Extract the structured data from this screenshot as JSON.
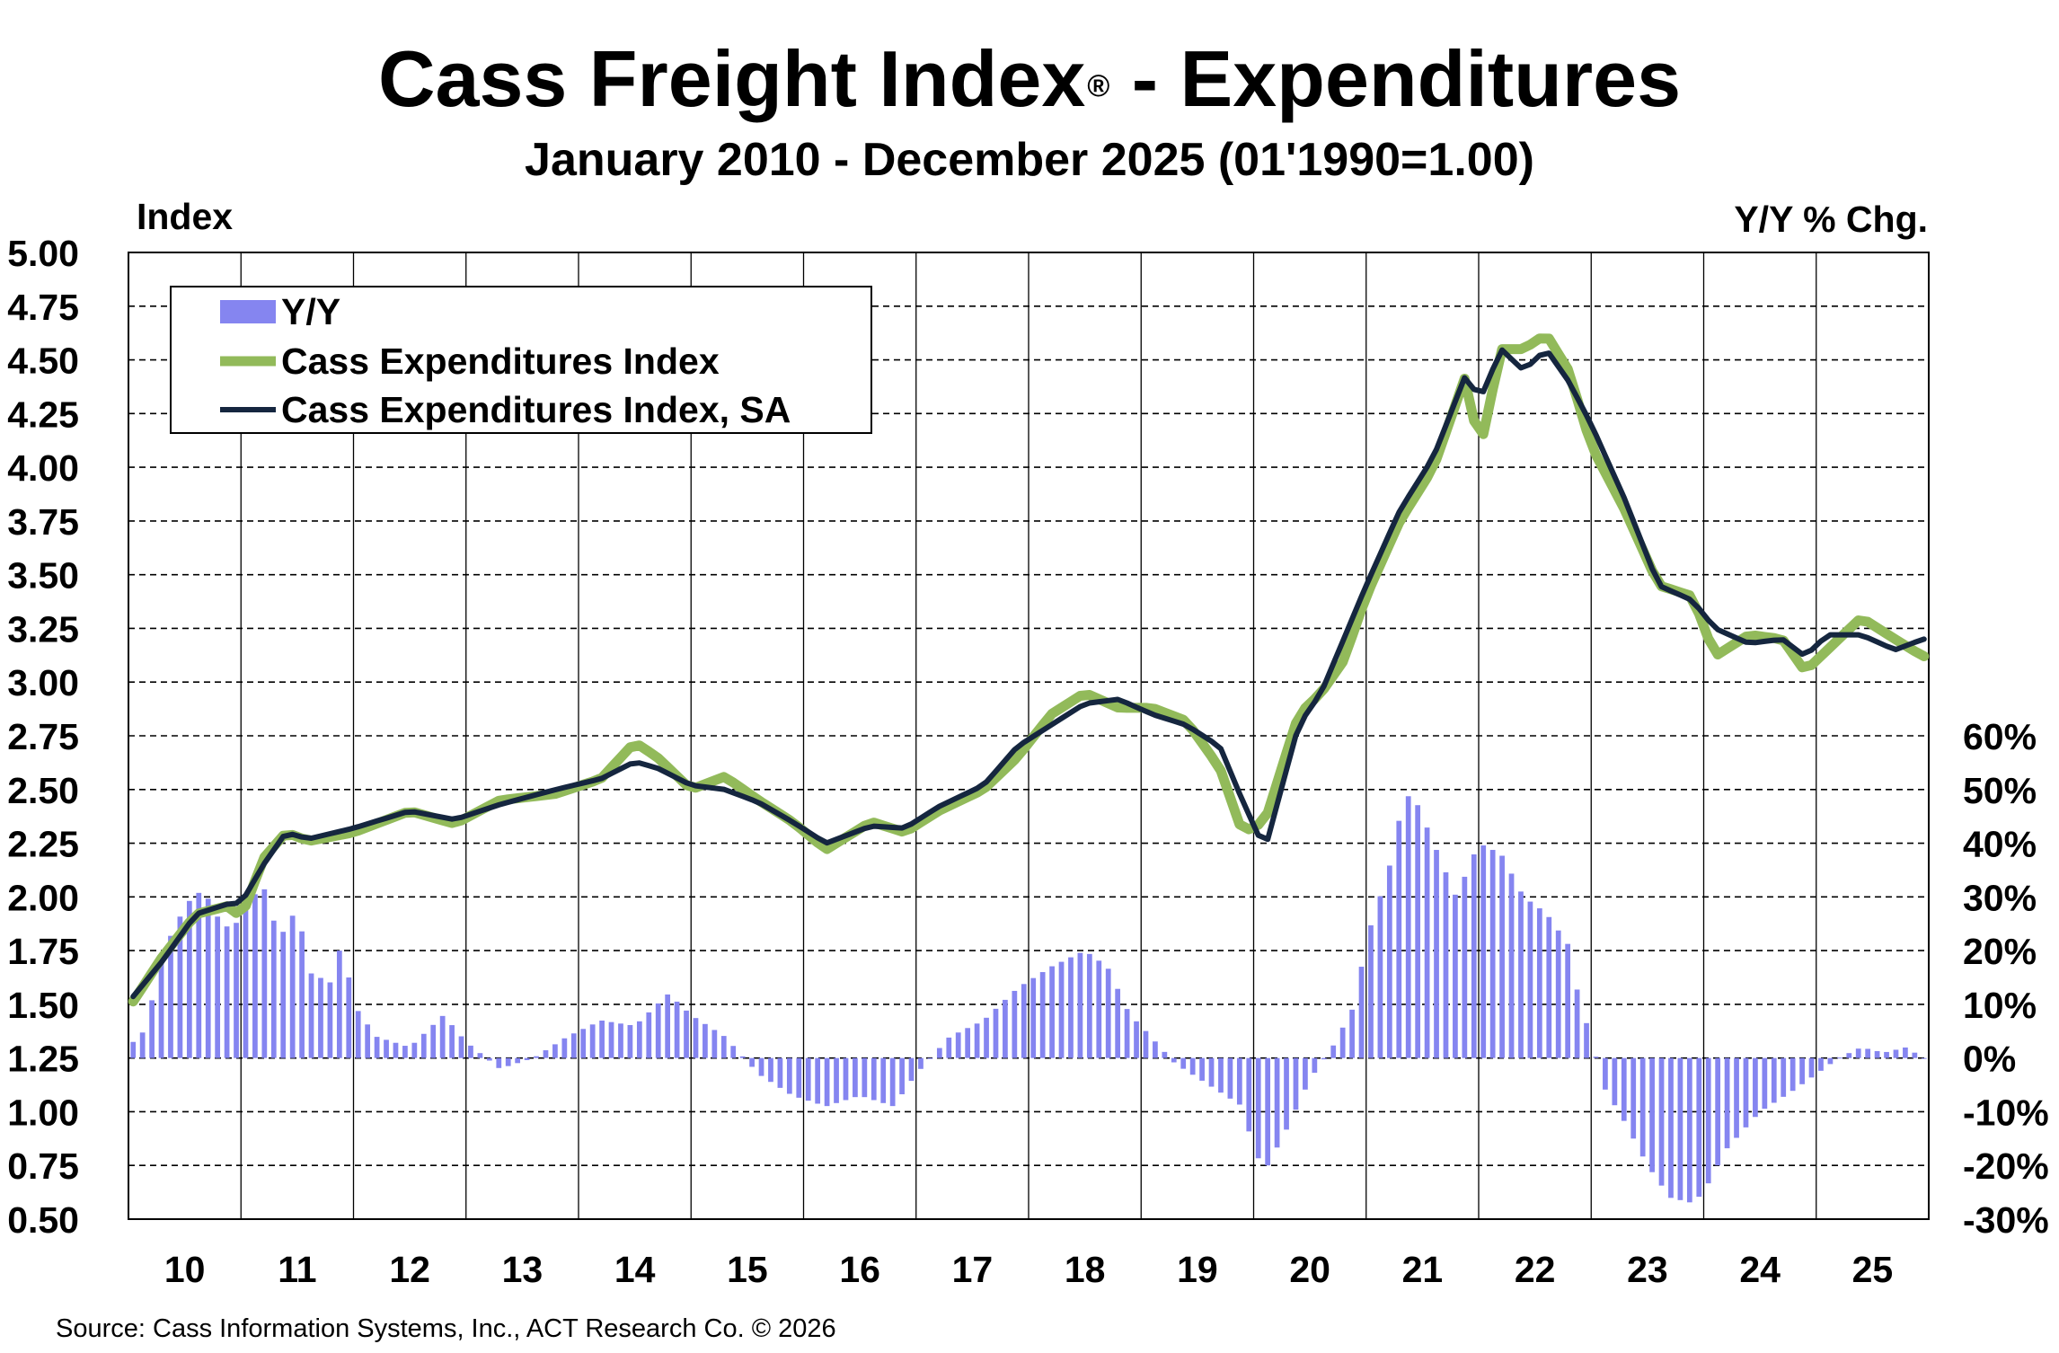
{
  "title": "Cass Freight Index",
  "title_mark": "®",
  "title_suffix": " - Expenditures",
  "subtitle": "January 2010 - December 2025 (01'1990=1.00)",
  "source": "Source: Cass Information Systems, Inc., ACT Research Co. © 2026",
  "colors": {
    "yy": "#8585f0",
    "nsa": "#92ba5a",
    "sa": "#15263f",
    "grid": "#000000"
  },
  "chart_data": {
    "type": "line",
    "left_axis_label": "Index",
    "right_axis_label": "Y/Y % Chg.",
    "ylim": [
      0.5,
      5.0
    ],
    "yticks": [
      "5.00",
      "4.75",
      "4.50",
      "4.25",
      "4.00",
      "3.75",
      "3.50",
      "3.25",
      "3.00",
      "2.75",
      "2.50",
      "2.25",
      "2.00",
      "1.75",
      "1.50",
      "1.25",
      "1.00",
      "0.75",
      "0.50"
    ],
    "y2lim": [
      -30,
      60
    ],
    "y2ticks": [
      "60%",
      "50%",
      "40%",
      "30%",
      "20%",
      "10%",
      "0%",
      "-10%",
      "-20%",
      "-30%"
    ],
    "categories": [
      "10",
      "11",
      "12",
      "13",
      "14",
      "15",
      "16",
      "17",
      "18",
      "19",
      "20",
      "21",
      "22",
      "23",
      "24",
      "25"
    ],
    "grid": true,
    "legend_position": "top-left",
    "series": [
      {
        "name": "Y/Y",
        "kind": "bar",
        "axis": "right",
        "key_points": [
          [
            2010.0,
            3
          ],
          [
            2010.1,
            3
          ],
          [
            2010.2,
            10
          ],
          [
            2010.3,
            19
          ],
          [
            2010.4,
            24
          ],
          [
            2010.5,
            28
          ],
          [
            2010.6,
            31
          ],
          [
            2010.7,
            30
          ],
          [
            2010.8,
            26
          ],
          [
            2010.9,
            24
          ],
          [
            2011.0,
            26
          ],
          [
            2011.1,
            30
          ],
          [
            2011.2,
            32
          ],
          [
            2011.3,
            25
          ],
          [
            2011.4,
            23
          ],
          [
            2011.5,
            29
          ],
          [
            2011.6,
            16
          ],
          [
            2011.8,
            14
          ],
          [
            2011.9,
            22
          ],
          [
            2012.0,
            10
          ],
          [
            2012.2,
            4
          ],
          [
            2012.5,
            2
          ],
          [
            2012.8,
            8
          ],
          [
            2013.0,
            3
          ],
          [
            2013.3,
            -2
          ],
          [
            2013.6,
            0
          ],
          [
            2013.9,
            4
          ],
          [
            2014.2,
            7
          ],
          [
            2014.5,
            6
          ],
          [
            2014.8,
            12
          ],
          [
            2015.0,
            8
          ],
          [
            2015.3,
            4
          ],
          [
            2015.6,
            -3
          ],
          [
            2015.9,
            -7
          ],
          [
            2016.2,
            -9
          ],
          [
            2016.5,
            -7
          ],
          [
            2016.8,
            -9
          ],
          [
            2017.0,
            -3
          ],
          [
            2017.3,
            4
          ],
          [
            2017.6,
            7
          ],
          [
            2017.9,
            13
          ],
          [
            2018.2,
            17
          ],
          [
            2018.5,
            20
          ],
          [
            2018.7,
            17
          ],
          [
            2018.9,
            8
          ],
          [
            2019.0,
            6
          ],
          [
            2019.3,
            -1
          ],
          [
            2019.6,
            -5
          ],
          [
            2019.9,
            -9
          ],
          [
            2020.0,
            -17
          ],
          [
            2020.1,
            -21
          ],
          [
            2020.3,
            -13
          ],
          [
            2020.5,
            -4
          ],
          [
            2020.7,
            2
          ],
          [
            2020.9,
            10
          ],
          [
            2021.0,
            22
          ],
          [
            2021.2,
            35
          ],
          [
            2021.3,
            45
          ],
          [
            2021.4,
            50
          ],
          [
            2021.6,
            40
          ],
          [
            2021.8,
            30
          ],
          [
            2022.0,
            40
          ],
          [
            2022.2,
            38
          ],
          [
            2022.4,
            30
          ],
          [
            2022.6,
            27
          ],
          [
            2022.8,
            21
          ],
          [
            2022.9,
            10
          ],
          [
            2023.0,
            4
          ],
          [
            2023.1,
            -5
          ],
          [
            2023.3,
            -12
          ],
          [
            2023.5,
            -20
          ],
          [
            2023.7,
            -26
          ],
          [
            2023.9,
            -27
          ],
          [
            2024.0,
            -25
          ],
          [
            2024.2,
            -17
          ],
          [
            2024.5,
            -10
          ],
          [
            2024.8,
            -6
          ],
          [
            2025.0,
            -3
          ],
          [
            2025.2,
            0
          ],
          [
            2025.4,
            2
          ],
          [
            2025.6,
            1
          ],
          [
            2025.8,
            2
          ],
          [
            2025.95,
            0
          ]
        ]
      },
      {
        "name": "Cass Expenditures Index",
        "kind": "line",
        "axis": "left",
        "key_points": [
          [
            2010.0,
            1.48
          ],
          [
            2010.3,
            1.72
          ],
          [
            2010.6,
            1.92
          ],
          [
            2010.9,
            1.96
          ],
          [
            2011.0,
            1.9
          ],
          [
            2011.2,
            2.18
          ],
          [
            2011.4,
            2.3
          ],
          [
            2011.6,
            2.26
          ],
          [
            2012.0,
            2.3
          ],
          [
            2012.5,
            2.4
          ],
          [
            2012.9,
            2.34
          ],
          [
            2013.3,
            2.45
          ],
          [
            2013.8,
            2.48
          ],
          [
            2014.2,
            2.55
          ],
          [
            2014.5,
            2.72
          ],
          [
            2014.7,
            2.65
          ],
          [
            2015.0,
            2.5
          ],
          [
            2015.3,
            2.56
          ],
          [
            2015.6,
            2.45
          ],
          [
            2015.9,
            2.35
          ],
          [
            2016.2,
            2.22
          ],
          [
            2016.6,
            2.35
          ],
          [
            2016.9,
            2.3
          ],
          [
            2017.2,
            2.4
          ],
          [
            2017.6,
            2.5
          ],
          [
            2017.9,
            2.65
          ],
          [
            2018.2,
            2.85
          ],
          [
            2018.5,
            2.95
          ],
          [
            2018.8,
            2.88
          ],
          [
            2019.1,
            2.88
          ],
          [
            2019.4,
            2.82
          ],
          [
            2019.7,
            2.6
          ],
          [
            2019.9,
            2.3
          ],
          [
            2020.1,
            2.35
          ],
          [
            2020.4,
            2.85
          ],
          [
            2020.6,
            2.95
          ],
          [
            2020.8,
            3.1
          ],
          [
            2021.0,
            3.4
          ],
          [
            2021.3,
            3.75
          ],
          [
            2021.6,
            4.0
          ],
          [
            2021.9,
            4.45
          ],
          [
            2022.0,
            4.05
          ],
          [
            2022.2,
            4.55
          ],
          [
            2022.4,
            4.55
          ],
          [
            2022.6,
            4.62
          ],
          [
            2022.8,
            4.45
          ],
          [
            2023.0,
            4.1
          ],
          [
            2023.3,
            3.8
          ],
          [
            2023.6,
            3.45
          ],
          [
            2023.9,
            3.4
          ],
          [
            2024.1,
            3.12
          ],
          [
            2024.4,
            3.22
          ],
          [
            2024.7,
            3.2
          ],
          [
            2024.9,
            3.05
          ],
          [
            2025.1,
            3.15
          ],
          [
            2025.4,
            3.3
          ],
          [
            2025.7,
            3.2
          ],
          [
            2025.95,
            3.12
          ]
        ]
      },
      {
        "name": "Cass Expenditures Index, SA",
        "kind": "line",
        "axis": "left",
        "key_points": [
          [
            2010.0,
            1.51
          ],
          [
            2010.3,
            1.7
          ],
          [
            2010.6,
            1.92
          ],
          [
            2010.9,
            1.97
          ],
          [
            2011.0,
            1.97
          ],
          [
            2011.2,
            2.15
          ],
          [
            2011.4,
            2.3
          ],
          [
            2011.6,
            2.27
          ],
          [
            2012.0,
            2.32
          ],
          [
            2012.5,
            2.4
          ],
          [
            2012.9,
            2.36
          ],
          [
            2013.3,
            2.43
          ],
          [
            2013.8,
            2.5
          ],
          [
            2014.2,
            2.55
          ],
          [
            2014.5,
            2.63
          ],
          [
            2014.7,
            2.6
          ],
          [
            2015.0,
            2.52
          ],
          [
            2015.3,
            2.5
          ],
          [
            2015.6,
            2.44
          ],
          [
            2015.9,
            2.35
          ],
          [
            2016.2,
            2.25
          ],
          [
            2016.6,
            2.33
          ],
          [
            2016.9,
            2.32
          ],
          [
            2017.2,
            2.42
          ],
          [
            2017.6,
            2.52
          ],
          [
            2017.9,
            2.7
          ],
          [
            2018.2,
            2.8
          ],
          [
            2018.5,
            2.9
          ],
          [
            2018.8,
            2.92
          ],
          [
            2019.1,
            2.85
          ],
          [
            2019.4,
            2.8
          ],
          [
            2019.7,
            2.7
          ],
          [
            2019.9,
            2.45
          ],
          [
            2020.1,
            2.22
          ],
          [
            2020.4,
            2.8
          ],
          [
            2020.6,
            2.95
          ],
          [
            2020.8,
            3.2
          ],
          [
            2021.0,
            3.45
          ],
          [
            2021.3,
            3.8
          ],
          [
            2021.6,
            4.05
          ],
          [
            2021.9,
            4.45
          ],
          [
            2022.0,
            4.3
          ],
          [
            2022.2,
            4.55
          ],
          [
            2022.4,
            4.45
          ],
          [
            2022.6,
            4.55
          ],
          [
            2022.8,
            4.4
          ],
          [
            2023.0,
            4.2
          ],
          [
            2023.3,
            3.85
          ],
          [
            2023.6,
            3.45
          ],
          [
            2023.9,
            3.38
          ],
          [
            2024.1,
            3.25
          ],
          [
            2024.4,
            3.18
          ],
          [
            2024.7,
            3.2
          ],
          [
            2024.9,
            3.12
          ],
          [
            2025.1,
            3.22
          ],
          [
            2025.4,
            3.22
          ],
          [
            2025.7,
            3.15
          ],
          [
            2025.95,
            3.2
          ]
        ]
      }
    ]
  }
}
